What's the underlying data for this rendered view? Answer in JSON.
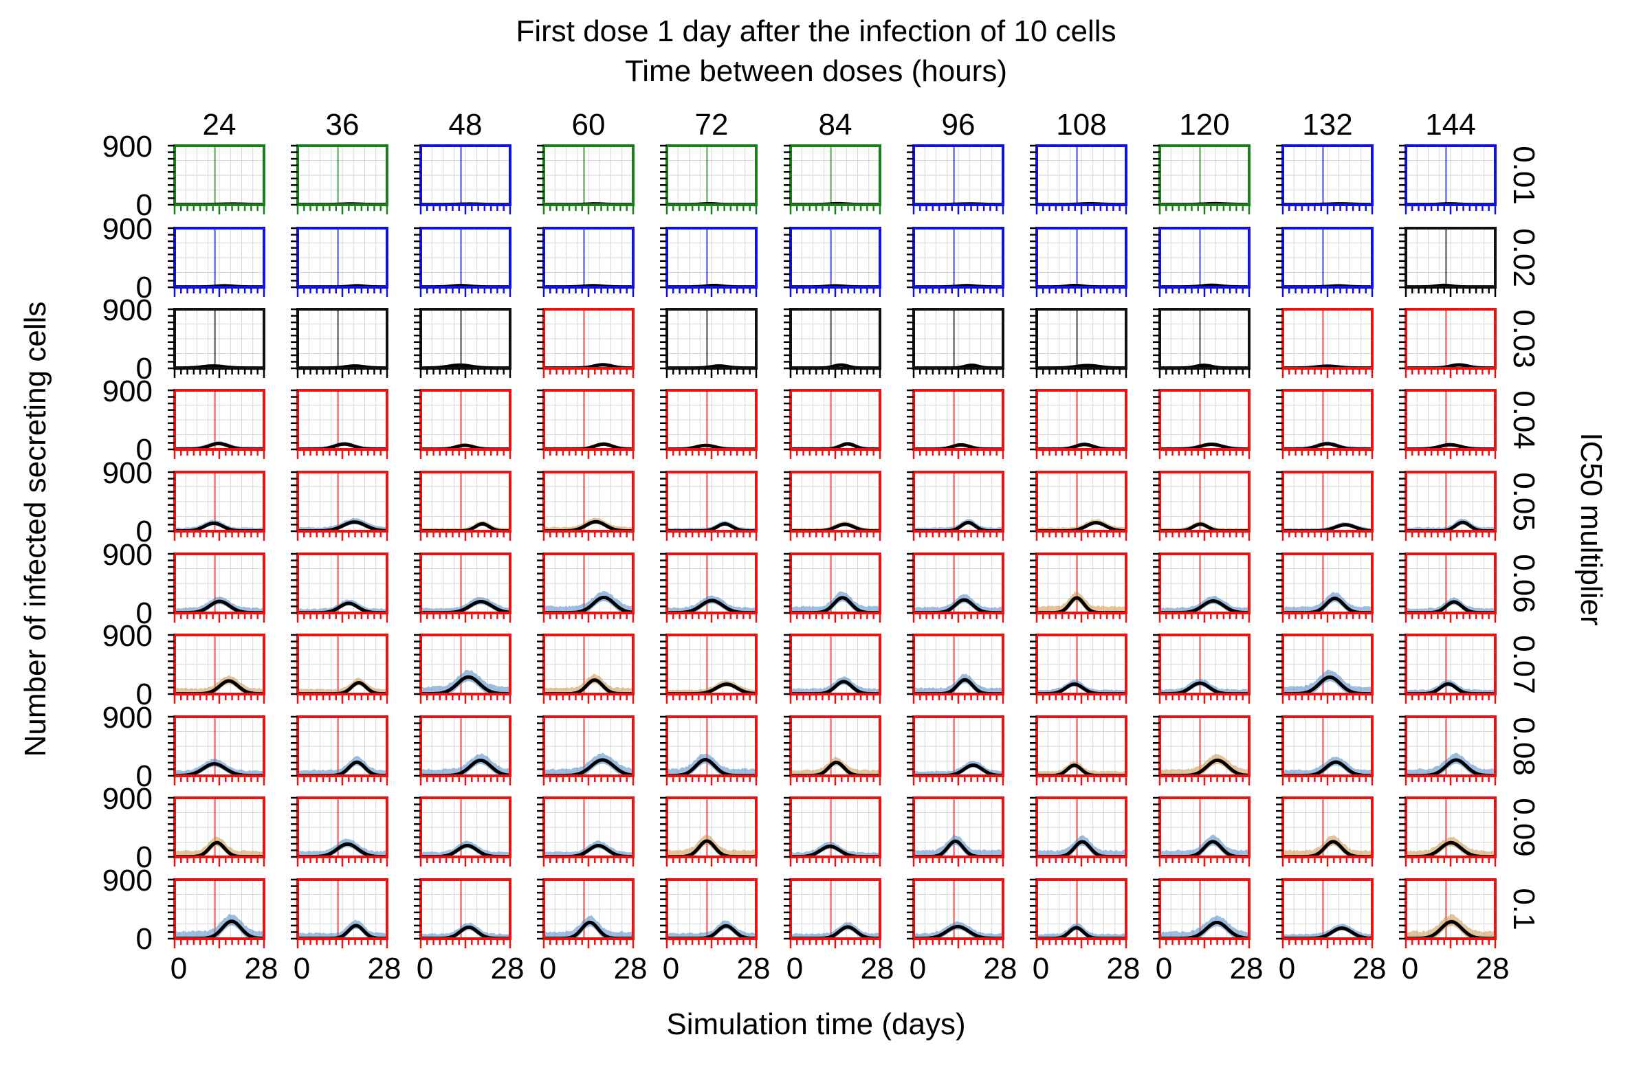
{
  "chart_data": {
    "type": "line",
    "title": "First dose 1 day after the infection of 10 cells",
    "subtitle": "Time between doses (hours)",
    "xlabel": "Simulation time (days)",
    "ylabel": "Number of infected secreting cells",
    "right_label": "IC50 multiplier",
    "xlim": [
      0,
      28
    ],
    "ylim": [
      0,
      900
    ],
    "xtick_labels": [
      "0",
      "28"
    ],
    "ytick_labels": [
      "0",
      "900"
    ],
    "dose_start_day": 1,
    "columns": [
      "24",
      "36",
      "48",
      "60",
      "72",
      "84",
      "96",
      "108",
      "120",
      "132",
      "144"
    ],
    "rows": [
      "0.01",
      "0.02",
      "0.03",
      "0.04",
      "0.05",
      "0.06",
      "0.07",
      "0.08",
      "0.09",
      "0.1"
    ],
    "status_colors": {
      "G": "#1a7f1a",
      "B": "#1010e0",
      "K": "#111111",
      "R": "#ee1111"
    },
    "band_colors": [
      "#4a86c4",
      "#c8924a"
    ],
    "mean_color": "#000000",
    "panel_status": [
      [
        "G",
        "G",
        "B",
        "G",
        "G",
        "G",
        "B",
        "B",
        "G",
        "B",
        "B"
      ],
      [
        "B",
        "B",
        "B",
        "B",
        "B",
        "B",
        "B",
        "B",
        "B",
        "B",
        "K"
      ],
      [
        "K",
        "K",
        "K",
        "R",
        "K",
        "K",
        "K",
        "K",
        "K",
        "R",
        "R"
      ],
      [
        "R",
        "R",
        "R",
        "R",
        "R",
        "R",
        "R",
        "R",
        "R",
        "R",
        "R"
      ],
      [
        "R",
        "R",
        "R",
        "R",
        "R",
        "R",
        "R",
        "R",
        "R",
        "R",
        "R"
      ],
      [
        "R",
        "R",
        "R",
        "R",
        "R",
        "R",
        "R",
        "R",
        "R",
        "R",
        "R"
      ],
      [
        "R",
        "R",
        "R",
        "R",
        "R",
        "R",
        "R",
        "R",
        "R",
        "R",
        "R"
      ],
      [
        "R",
        "R",
        "R",
        "R",
        "R",
        "R",
        "R",
        "R",
        "R",
        "R",
        "R"
      ],
      [
        "R",
        "R",
        "R",
        "R",
        "R",
        "R",
        "R",
        "R",
        "R",
        "R",
        "R"
      ],
      [
        "R",
        "R",
        "R",
        "R",
        "R",
        "R",
        "R",
        "R",
        "R",
        "R",
        "R"
      ]
    ],
    "peak_values_by_row": [
      10,
      20,
      40,
      80,
      120,
      180,
      200,
      220,
      200,
      210
    ]
  }
}
